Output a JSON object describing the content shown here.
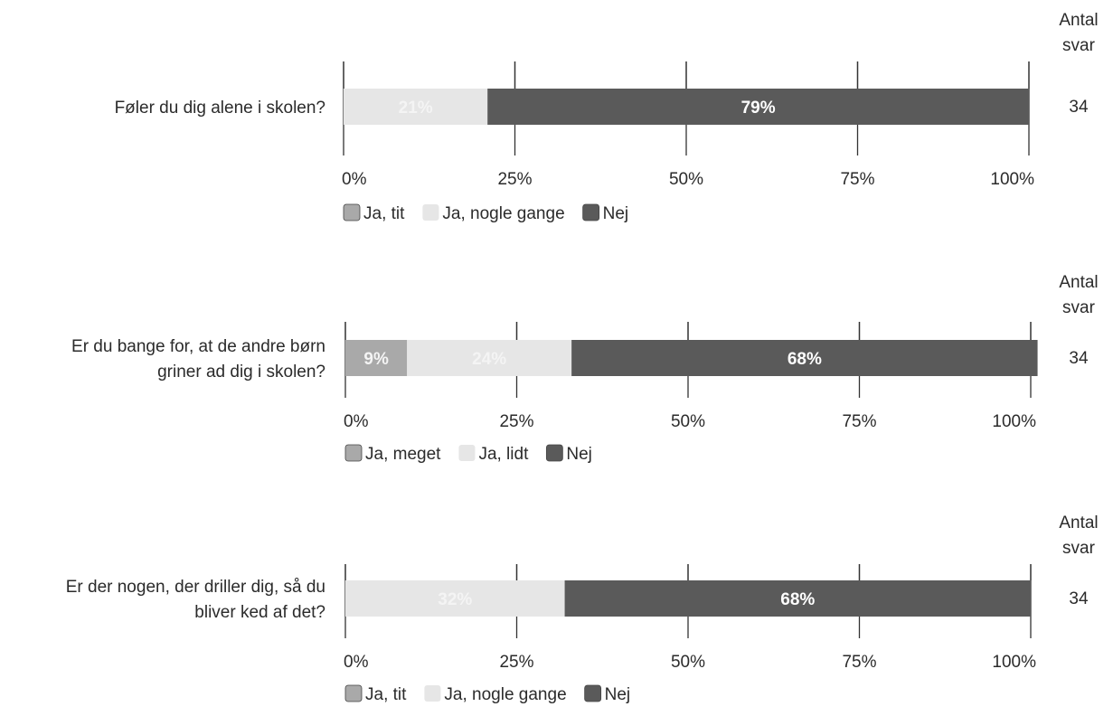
{
  "colors": {
    "ja_tit": "#a9a9a9",
    "ja_nogle": "#e6e6e6",
    "nej": "#5a5a5a",
    "label_light": "#f4f4f4",
    "label_dark": "#ffffff",
    "axis": "#333333"
  },
  "chart_data": [
    {
      "type": "bar",
      "orientation": "horizontal-stacked",
      "question_lines": [
        "Føler du dig alene i skolen?"
      ],
      "count_header": [
        "Antal",
        "svar"
      ],
      "count": "34",
      "xlim": [
        0,
        100
      ],
      "ticks": [
        "0%",
        "25%",
        "50%",
        "75%",
        "100%"
      ],
      "segments": [
        {
          "name": "Ja, nogle gange",
          "value": 21,
          "label": "21%",
          "color_key": "ja_nogle"
        },
        {
          "name": "Nej",
          "value": 79,
          "label": "79%",
          "color_key": "nej"
        }
      ],
      "legend": [
        {
          "name": "Ja, tit",
          "color_key": "ja_tit"
        },
        {
          "name": "Ja, nogle gange",
          "color_key": "ja_nogle"
        },
        {
          "name": "Nej",
          "color_key": "nej"
        }
      ]
    },
    {
      "type": "bar",
      "orientation": "horizontal-stacked",
      "question_lines": [
        "Er du bange for, at de andre børn",
        "griner ad dig i skolen?"
      ],
      "count_header": [
        "Antal",
        "svar"
      ],
      "count": "34",
      "xlim": [
        0,
        100
      ],
      "ticks": [
        "0%",
        "25%",
        "50%",
        "75%",
        "100%"
      ],
      "segments": [
        {
          "name": "Ja, meget",
          "value": 9,
          "label": "9%",
          "color_key": "ja_tit"
        },
        {
          "name": "Ja, lidt",
          "value": 24,
          "label": "24%",
          "color_key": "ja_nogle"
        },
        {
          "name": "Nej",
          "value": 68,
          "label": "68%",
          "color_key": "nej"
        }
      ],
      "legend": [
        {
          "name": "Ja, meget",
          "color_key": "ja_tit"
        },
        {
          "name": "Ja, lidt",
          "color_key": "ja_nogle"
        },
        {
          "name": "Nej",
          "color_key": "nej"
        }
      ]
    },
    {
      "type": "bar",
      "orientation": "horizontal-stacked",
      "question_lines": [
        "Er der nogen, der driller dig, så du",
        "bliver ked af det?"
      ],
      "count_header": [
        "Antal",
        "svar"
      ],
      "count": "34",
      "xlim": [
        0,
        100
      ],
      "ticks": [
        "0%",
        "25%",
        "50%",
        "75%",
        "100%"
      ],
      "segments": [
        {
          "name": "Ja, nogle gange",
          "value": 32,
          "label": "32%",
          "color_key": "ja_nogle"
        },
        {
          "name": "Nej",
          "value": 68,
          "label": "68%",
          "color_key": "nej"
        }
      ],
      "legend": [
        {
          "name": "Ja, tit",
          "color_key": "ja_tit"
        },
        {
          "name": "Ja, nogle gange",
          "color_key": "ja_nogle"
        },
        {
          "name": "Nej",
          "color_key": "nej"
        }
      ]
    }
  ]
}
